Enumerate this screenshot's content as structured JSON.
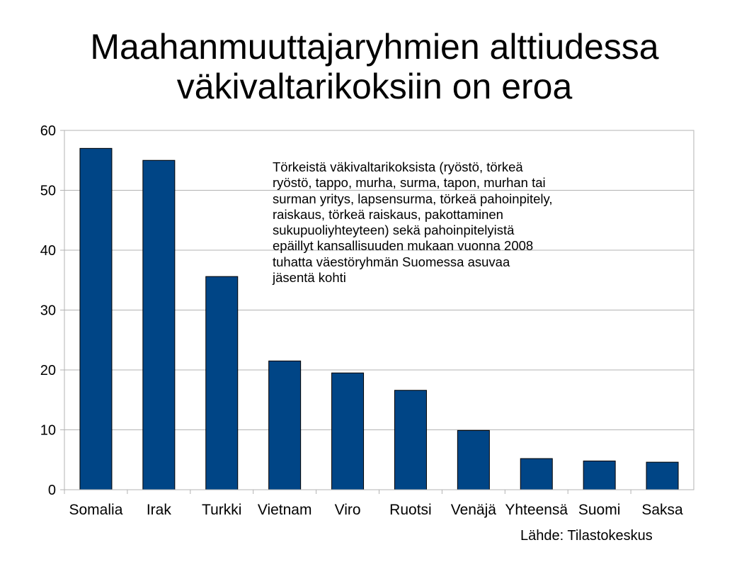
{
  "slide": {
    "title_lines": [
      "Maahanmuuttajaryhmien alttiudessa",
      "väkivaltarikoksiin on eroa"
    ],
    "source": "Lähde: Tilastokeskus"
  },
  "chart_data": {
    "type": "bar",
    "categories": [
      "Somalia",
      "Irak",
      "Turkki",
      "Vietnam",
      "Viro",
      "Ruotsi",
      "Venäjä",
      "Yhteensä",
      "Suomi",
      "Saksa"
    ],
    "values": [
      57,
      55,
      35.6,
      21.5,
      19.5,
      16.6,
      9.9,
      5.2,
      4.8,
      4.6
    ],
    "ylim": [
      0,
      60
    ],
    "yticks": [
      0,
      10,
      20,
      30,
      40,
      50,
      60
    ],
    "ytick_labels": [
      "0",
      "10",
      "20",
      "30",
      "40",
      "50",
      "60"
    ],
    "grid": true,
    "legend": "none",
    "bar_color": "#004586",
    "annotation_lines": [
      "Törkeistä väkivaltarikoksista (ryöstö, törkeä",
      "ryöstö, tappo, murha, surma, tapon, murhan tai",
      "surman yritys, lapsensurma, törkeä pahoinpitely,",
      "raiskaus, törkeä raiskaus, pakottaminen",
      "sukupuoliyhteyteen) sekä pahoinpitelyistä",
      "epäillyt kansallisuuden mukaan vuonna 2008",
      "tuhatta väestöryhmän Suomessa asuvaa",
      "jäsentä kohti"
    ]
  }
}
